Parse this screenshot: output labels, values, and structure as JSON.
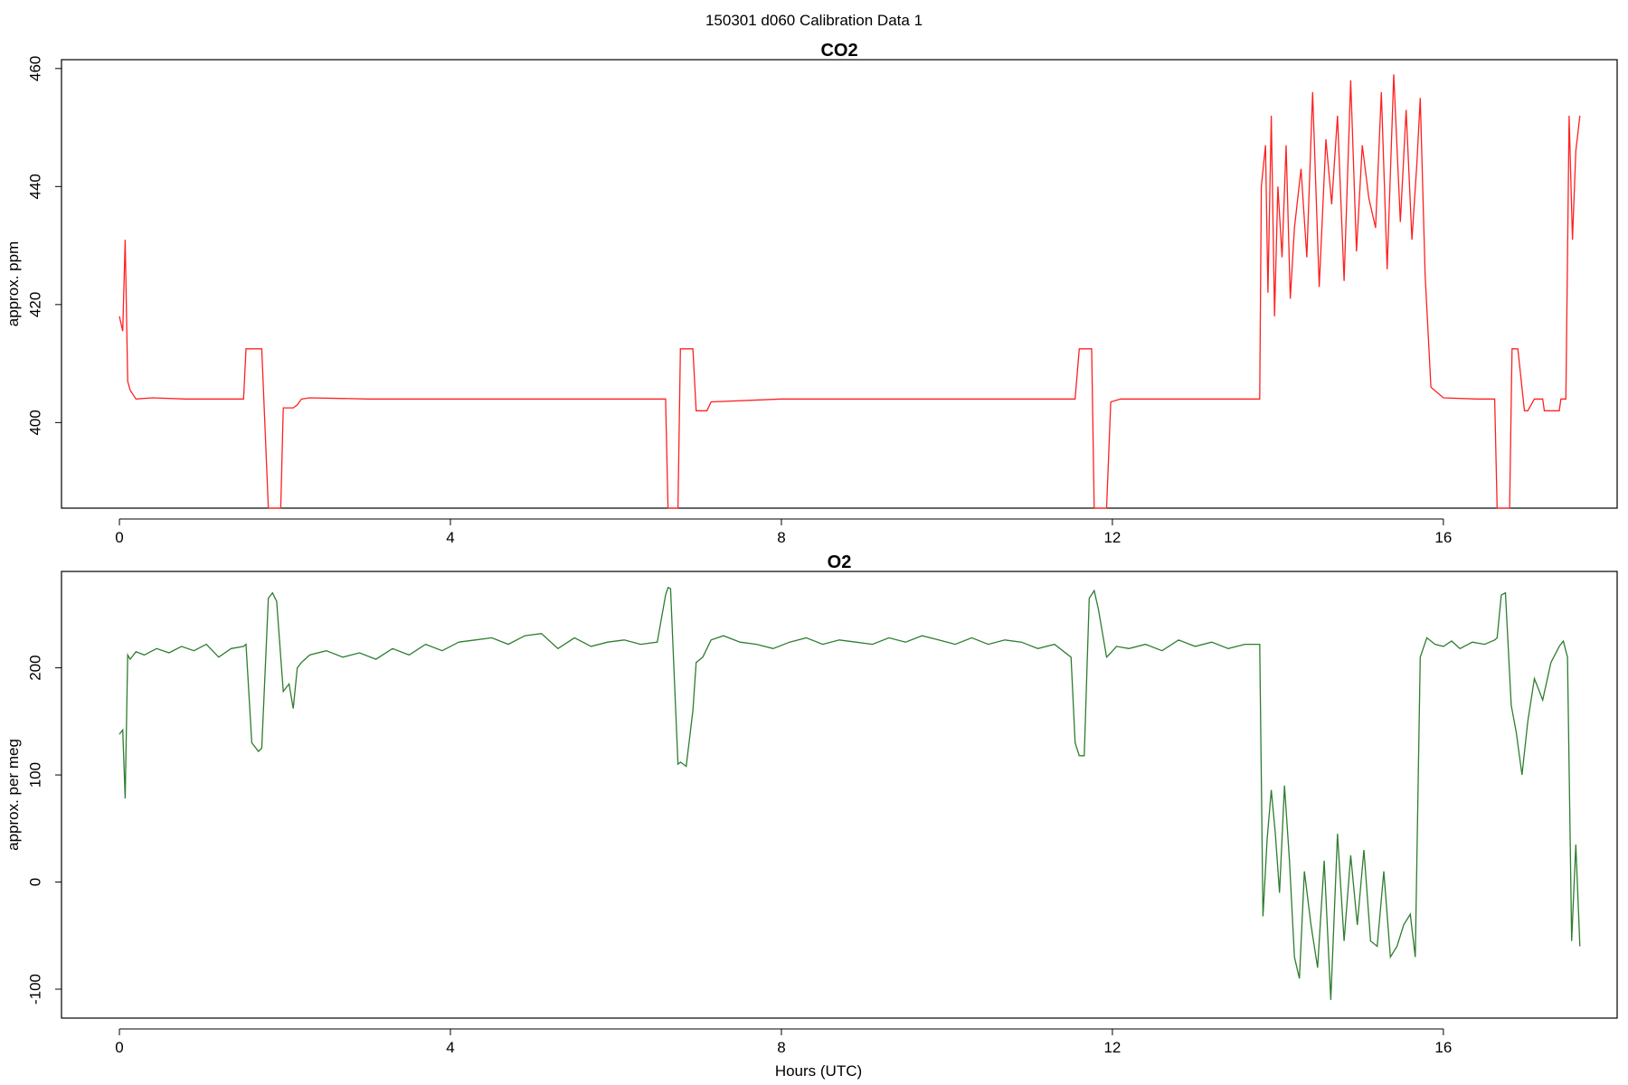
{
  "figure": {
    "title": "150301   d060   Calibration Data 1",
    "xlabel": "Hours (UTC)"
  },
  "colors": {
    "co2_line": "#ff2020",
    "o2_line": "#2e7d2e",
    "axes": "#000000",
    "background": "#ffffff"
  },
  "chart_data": [
    {
      "type": "line",
      "title": "CO2",
      "xlabel": "",
      "ylabel": "approx. ppm",
      "xlim": [
        -0.7,
        18.1
      ],
      "ylim": [
        385.5,
        461.5
      ],
      "xticks": [
        0,
        4,
        8,
        12,
        16
      ],
      "yticks": [
        400,
        420,
        440,
        460
      ],
      "grid": false,
      "series": [
        {
          "color": "#ff2020",
          "x": [
            0.0,
            0.04,
            0.07,
            0.1,
            0.13,
            0.2,
            0.4,
            0.8,
            1.2,
            1.5,
            1.53,
            1.6,
            1.68,
            1.72,
            1.8,
            1.95,
            1.98,
            2.1,
            2.15,
            2.2,
            2.3,
            3.0,
            4.0,
            5.0,
            6.0,
            6.6,
            6.63,
            6.66,
            6.75,
            6.78,
            6.85,
            6.93,
            6.97,
            7.1,
            7.15,
            8.0,
            9.0,
            10.0,
            11.0,
            11.55,
            11.6,
            11.66,
            11.75,
            11.78,
            11.83,
            11.93,
            11.98,
            12.1,
            13.0,
            13.78,
            13.8,
            13.85,
            13.88,
            13.92,
            13.96,
            14.0,
            14.05,
            14.1,
            14.15,
            14.2,
            14.28,
            14.35,
            14.42,
            14.5,
            14.58,
            14.65,
            14.72,
            14.8,
            14.88,
            14.95,
            15.02,
            15.1,
            15.18,
            15.25,
            15.32,
            15.4,
            15.48,
            15.55,
            15.62,
            15.68,
            15.72,
            15.78,
            15.85,
            16.0,
            16.4,
            16.62,
            16.65,
            16.68,
            16.8,
            16.83,
            16.9,
            16.98,
            17.02,
            17.1,
            17.2,
            17.22,
            17.25,
            17.4,
            17.42,
            17.48,
            17.52,
            17.56,
            17.6,
            17.65
          ],
          "values": [
            418,
            415.5,
            431,
            407,
            405.5,
            404,
            404.2,
            404,
            404,
            404,
            412.5,
            412.5,
            412.5,
            412.5,
            385.5,
            385.5,
            402.5,
            402.5,
            403,
            404,
            404.2,
            404,
            404,
            404,
            404,
            404,
            385.5,
            385.5,
            385.5,
            412.5,
            412.5,
            412.5,
            402,
            402,
            403.5,
            404,
            404,
            404,
            404,
            404,
            412.5,
            412.5,
            412.5,
            385.5,
            385.5,
            385.5,
            403.5,
            404,
            404,
            404,
            440,
            447,
            422,
            452,
            418,
            440,
            428,
            447,
            421,
            433,
            443,
            428,
            456,
            423,
            448,
            437,
            452,
            424,
            458,
            429,
            447,
            438,
            433,
            456,
            426,
            459,
            434,
            453,
            431,
            444,
            455,
            425,
            406,
            404.2,
            404,
            404,
            385.5,
            385.5,
            385.5,
            412.5,
            412.5,
            402,
            402,
            404,
            404,
            402,
            402,
            402,
            404,
            404,
            452,
            431,
            446,
            452
          ]
        }
      ]
    },
    {
      "type": "line",
      "title": "O2",
      "xlabel": "Hours (UTC)",
      "ylabel": "approx. per meg",
      "xlim": [
        -0.7,
        18.1
      ],
      "ylim": [
        -127,
        290
      ],
      "xticks": [
        0,
        4,
        8,
        12,
        16
      ],
      "yticks": [
        -100,
        0,
        100,
        200
      ],
      "grid": false,
      "series": [
        {
          "color": "#2e7d2e",
          "x": [
            0.0,
            0.04,
            0.07,
            0.1,
            0.13,
            0.2,
            0.3,
            0.45,
            0.6,
            0.75,
            0.9,
            1.05,
            1.2,
            1.35,
            1.5,
            1.53,
            1.6,
            1.68,
            1.72,
            1.8,
            1.85,
            1.9,
            1.95,
            1.98,
            2.05,
            2.1,
            2.15,
            2.2,
            2.3,
            2.5,
            2.7,
            2.9,
            3.1,
            3.3,
            3.5,
            3.7,
            3.9,
            4.1,
            4.3,
            4.5,
            4.7,
            4.9,
            5.1,
            5.3,
            5.5,
            5.7,
            5.9,
            6.1,
            6.3,
            6.5,
            6.6,
            6.63,
            6.66,
            6.75,
            6.78,
            6.85,
            6.93,
            6.97,
            7.05,
            7.15,
            7.3,
            7.5,
            7.7,
            7.9,
            8.1,
            8.3,
            8.5,
            8.7,
            8.9,
            9.1,
            9.3,
            9.5,
            9.7,
            9.9,
            10.1,
            10.3,
            10.5,
            10.7,
            10.9,
            11.1,
            11.3,
            11.5,
            11.55,
            11.6,
            11.66,
            11.72,
            11.78,
            11.83,
            11.93,
            11.98,
            12.05,
            12.2,
            12.4,
            12.6,
            12.8,
            13.0,
            13.2,
            13.4,
            13.6,
            13.78,
            13.82,
            13.87,
            13.92,
            13.97,
            14.02,
            14.08,
            14.14,
            14.2,
            14.26,
            14.32,
            14.4,
            14.48,
            14.56,
            14.64,
            14.72,
            14.8,
            14.88,
            14.96,
            15.04,
            15.12,
            15.2,
            15.28,
            15.36,
            15.44,
            15.52,
            15.6,
            15.66,
            15.72,
            15.8,
            15.9,
            16.0,
            16.1,
            16.2,
            16.35,
            16.5,
            16.62,
            16.65,
            16.7,
            16.75,
            16.82,
            16.88,
            16.95,
            17.02,
            17.1,
            17.2,
            17.3,
            17.4,
            17.45,
            17.5,
            17.55,
            17.6,
            17.65
          ],
          "values": [
            138,
            142,
            78,
            212,
            208,
            215,
            212,
            218,
            214,
            220,
            216,
            222,
            210,
            218,
            220,
            222,
            130,
            122,
            125,
            265,
            270,
            262,
            210,
            178,
            185,
            162,
            200,
            205,
            212,
            216,
            210,
            214,
            208,
            218,
            212,
            222,
            216,
            224,
            226,
            228,
            222,
            230,
            232,
            218,
            228,
            220,
            224,
            226,
            222,
            224,
            268,
            275,
            274,
            110,
            112,
            108,
            160,
            205,
            210,
            226,
            230,
            224,
            222,
            218,
            224,
            228,
            222,
            226,
            224,
            222,
            228,
            224,
            230,
            226,
            222,
            228,
            222,
            226,
            224,
            218,
            222,
            210,
            130,
            118,
            118,
            265,
            272,
            255,
            210,
            214,
            220,
            218,
            222,
            216,
            226,
            220,
            224,
            218,
            222,
            222,
            -32,
            40,
            86,
            45,
            -10,
            90,
            20,
            -70,
            -90,
            10,
            -40,
            -80,
            20,
            -110,
            45,
            -55,
            25,
            -40,
            30,
            -55,
            -60,
            10,
            -70,
            -60,
            -40,
            -30,
            -70,
            210,
            228,
            222,
            220,
            225,
            218,
            224,
            222,
            226,
            228,
            268,
            270,
            165,
            140,
            100,
            150,
            190,
            170,
            205,
            220,
            225,
            210,
            -55,
            35,
            -60
          ]
        }
      ]
    }
  ]
}
